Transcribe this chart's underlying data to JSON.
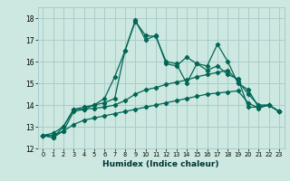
{
  "x": [
    0,
    1,
    2,
    3,
    4,
    5,
    6,
    7,
    8,
    9,
    10,
    11,
    12,
    13,
    14,
    15,
    16,
    17,
    18,
    19,
    20,
    21,
    22,
    23
  ],
  "line1": [
    12.6,
    12.5,
    12.8,
    13.7,
    13.8,
    14.0,
    14.1,
    14.3,
    16.5,
    17.9,
    17.0,
    17.2,
    15.9,
    15.8,
    16.2,
    15.9,
    15.8,
    16.8,
    16.0,
    15.0,
    14.7,
    13.9,
    14.0,
    13.7
  ],
  "line2": [
    12.6,
    12.5,
    13.0,
    13.8,
    13.9,
    14.0,
    14.3,
    15.3,
    16.5,
    17.85,
    17.2,
    17.15,
    16.0,
    15.9,
    15.0,
    15.9,
    15.6,
    15.8,
    15.4,
    15.2,
    13.9,
    13.9,
    14.0,
    13.7
  ],
  "line3": [
    12.6,
    12.7,
    13.0,
    13.8,
    13.8,
    13.85,
    13.9,
    14.0,
    14.2,
    14.5,
    14.7,
    14.8,
    14.95,
    15.05,
    15.15,
    15.3,
    15.4,
    15.5,
    15.6,
    15.1,
    14.5,
    14.0,
    14.0,
    13.7
  ],
  "line4": [
    12.6,
    12.6,
    12.8,
    13.1,
    13.3,
    13.4,
    13.5,
    13.6,
    13.7,
    13.8,
    13.9,
    14.0,
    14.1,
    14.2,
    14.3,
    14.4,
    14.5,
    14.55,
    14.6,
    14.65,
    14.1,
    13.85,
    14.0,
    13.7
  ],
  "bg_color": "#cce8e0",
  "grid_color": "#aacccc",
  "line_color": "#006655",
  "xlabel": "Humidex (Indice chaleur)",
  "ylim": [
    12,
    18.5
  ],
  "xlim": [
    -0.5,
    23.5
  ],
  "yticks": [
    12,
    13,
    14,
    15,
    16,
    17,
    18
  ],
  "xticks": [
    0,
    1,
    2,
    3,
    4,
    5,
    6,
    7,
    8,
    9,
    10,
    11,
    12,
    13,
    14,
    15,
    16,
    17,
    18,
    19,
    20,
    21,
    22,
    23
  ],
  "marker": "D",
  "marker_size": 2.2,
  "line_width": 0.9
}
